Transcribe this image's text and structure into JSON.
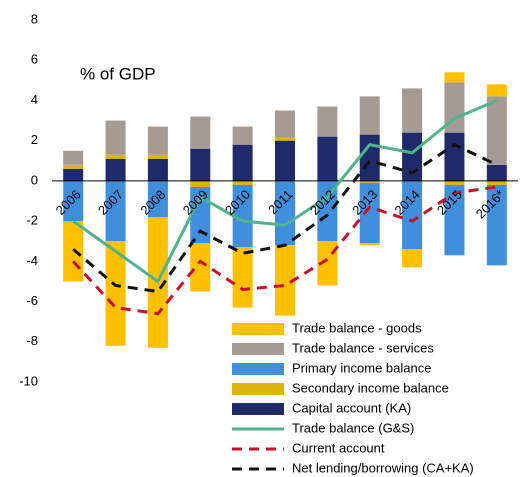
{
  "chart_data": {
    "type": "bar",
    "annotation": "% of GDP",
    "categories": [
      "2006",
      "2007",
      "2008",
      "2009",
      "2010",
      "2011",
      "2012",
      "2013",
      "2014",
      "2015",
      "2016*"
    ],
    "ylim": [
      -10,
      8
    ],
    "yticks": [
      -10,
      -8,
      -6,
      -4,
      -2,
      0,
      2,
      4,
      6,
      8
    ],
    "series": [
      {
        "name": "Trade balance - goods",
        "type": "bar",
        "color": "#ffc000",
        "values": [
          -3.0,
          -5.2,
          -6.5,
          -2.4,
          -3.0,
          -3.5,
          -2.2,
          -0.1,
          -0.9,
          0.5,
          0.6
        ]
      },
      {
        "name": "Trade balance - services",
        "type": "bar",
        "color": "#a69b93",
        "values": [
          0.7,
          1.7,
          1.4,
          1.6,
          0.9,
          1.35,
          1.5,
          1.9,
          2.2,
          2.5,
          3.4
        ]
      },
      {
        "name": "Primary income balance",
        "type": "bar",
        "color": "#3f8fdc",
        "values": [
          -2.0,
          -3.0,
          -1.8,
          -2.8,
          -3.1,
          -3.2,
          -3.0,
          -3.0,
          -3.4,
          -3.5,
          -4.0
        ]
      },
      {
        "name": "Secondary income balance",
        "type": "bar",
        "color": "#dcb40a",
        "values": [
          0.2,
          0.2,
          0.2,
          -0.3,
          -0.2,
          0.15,
          0,
          -0.1,
          0,
          -0.2,
          -0.2
        ]
      },
      {
        "name": "Capital account (KA)",
        "type": "bar",
        "color": "#1f2a6b",
        "values": [
          0.6,
          1.1,
          1.1,
          1.6,
          1.8,
          2.0,
          2.2,
          2.3,
          2.4,
          2.4,
          0.8
        ]
      },
      {
        "name": "Trade balance (G&S)",
        "type": "line",
        "dash": false,
        "color": "#4fb38d",
        "values": [
          -2.0,
          -3.5,
          -5.0,
          -0.8,
          -2.0,
          -2.2,
          -0.8,
          1.8,
          1.4,
          3.1,
          4.0
        ]
      },
      {
        "name": "Current account",
        "type": "line",
        "dash": true,
        "color": "#c8102e",
        "values": [
          -4.0,
          -6.3,
          -6.6,
          -4.0,
          -5.4,
          -5.2,
          -3.9,
          -1.3,
          -2.0,
          -0.6,
          -0.3
        ]
      },
      {
        "name": "Net lending/borrowing (CA+KA)",
        "type": "line",
        "dash": true,
        "color": "#111111",
        "values": [
          -3.4,
          -5.2,
          -5.5,
          -2.5,
          -3.6,
          -3.2,
          -1.7,
          1.0,
          0.4,
          1.8,
          0.8
        ]
      }
    ]
  }
}
